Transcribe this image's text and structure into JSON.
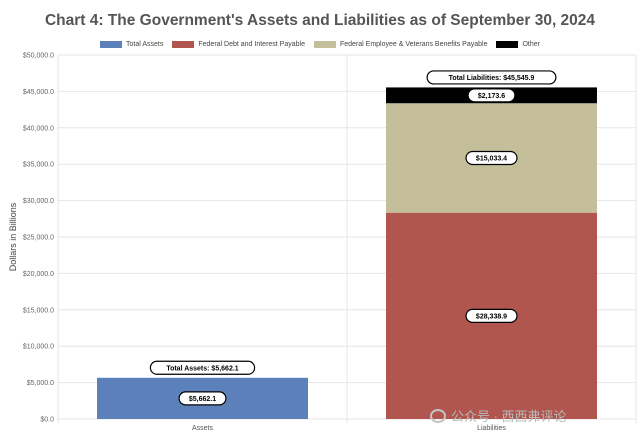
{
  "chart_data": {
    "type": "bar",
    "title": "Chart 4: The Government's Assets and Liabilities as of September 30, 2024",
    "ylabel": "Dollars in Billions",
    "ylim": [
      0,
      50000
    ],
    "y_ticks": [
      "$0.0",
      "$5,000.0",
      "$10,000.0",
      "$15,000.0",
      "$20,000.0",
      "$25,000.0",
      "$30,000.0",
      "$35,000.0",
      "$40,000.0",
      "$45,000.0",
      "$50,000.0"
    ],
    "stacked": true,
    "grid": true,
    "legend_position": "top",
    "categories": [
      "Assets",
      "Liabilities"
    ],
    "series": [
      {
        "name": "Total Assets",
        "color": "#5b80ba",
        "values": [
          5662.1,
          0
        ],
        "labels": [
          "$5,662.1",
          ""
        ]
      },
      {
        "name": "Federal Debt and Interest Payable",
        "color": "#b1554f",
        "values": [
          0,
          28338.9
        ],
        "labels": [
          "",
          "$28,338.9"
        ]
      },
      {
        "name": "Federal Employee & Veterans Benefits Payable",
        "color": "#c5be9b",
        "values": [
          0,
          15033.4
        ],
        "labels": [
          "",
          "$15,033.4"
        ]
      },
      {
        "name": "Other",
        "color": "#000000",
        "values": [
          0,
          2173.6
        ],
        "labels": [
          "",
          "$2,173.6"
        ]
      }
    ],
    "totals": [
      {
        "label": "Total Assets: $5,662.1",
        "value": 5662.1
      },
      {
        "label": "Total Liabilities: $45,545.9",
        "value": 45545.9
      }
    ]
  },
  "watermark": {
    "text": "公众号 · 西西弗评论"
  }
}
